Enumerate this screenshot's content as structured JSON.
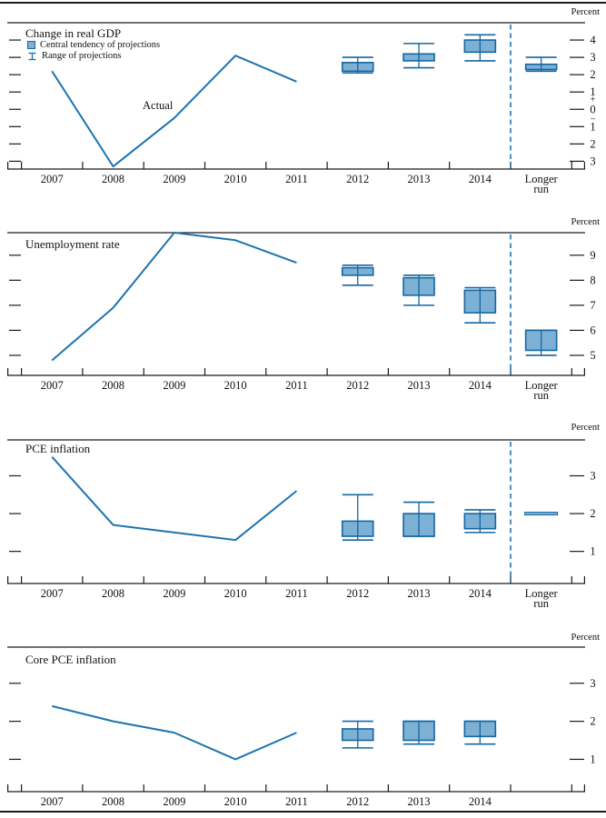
{
  "labels": {
    "percent": "Percent",
    "actual": "Actual",
    "plus": "+",
    "minus": "_",
    "longer_run": [
      "Longer",
      "run"
    ]
  },
  "legend": {
    "items": [
      {
        "icon": "central-tendency-swatch",
        "label": "Central tendency of projections"
      },
      {
        "icon": "range-whisker-icon",
        "label": "Range of projections"
      }
    ]
  },
  "colors": {
    "line": "#1d74af",
    "box_fill": "#7db0d5",
    "box_border": "#1467a0",
    "dashed_divider": "#1d74af",
    "axis": "#1a1a1a",
    "text": "#111111"
  },
  "chart_data": [
    {
      "type": "line+boxplot",
      "title": "Change in real GDP",
      "unit": "Percent",
      "ylim": [
        -3.45,
        5.0
      ],
      "yticks": [
        4,
        3,
        2,
        1,
        0,
        -1,
        -2,
        -3
      ],
      "ytick_labels": [
        "4",
        "3",
        "2",
        "1",
        "0",
        "1",
        "2",
        "3"
      ],
      "zero_sign_marks": true,
      "x_years": [
        "2007",
        "2008",
        "2009",
        "2010",
        "2011"
      ],
      "actual_values": [
        2.2,
        -3.3,
        -0.5,
        3.1,
        1.6
      ],
      "show_actual_label": true,
      "has_longer_run": true,
      "x_axis_labels": [
        "2007",
        "2008",
        "2009",
        "2010",
        "2011",
        "2012",
        "2013",
        "2014"
      ],
      "projections": [
        {
          "period": "2012",
          "central_tendency": [
            2.2,
            2.7
          ],
          "range": [
            2.1,
            3.0
          ]
        },
        {
          "period": "2013",
          "central_tendency": [
            2.8,
            3.2
          ],
          "range": [
            2.4,
            3.8
          ]
        },
        {
          "period": "2014",
          "central_tendency": [
            3.3,
            4.0
          ],
          "range": [
            2.8,
            4.3
          ]
        },
        {
          "period": "Longer run",
          "central_tendency": [
            2.3,
            2.6
          ],
          "range": [
            2.2,
            3.0
          ]
        }
      ]
    },
    {
      "type": "line+boxplot",
      "title": "Unemployment rate",
      "unit": "Percent",
      "ylim": [
        4.2,
        9.9
      ],
      "yticks": [
        9,
        8,
        7,
        6,
        5
      ],
      "ytick_labels": [
        "9",
        "8",
        "7",
        "6",
        "5"
      ],
      "zero_sign_marks": false,
      "x_years": [
        "2007",
        "2008",
        "2009",
        "2010",
        "2011"
      ],
      "actual_values": [
        4.8,
        6.9,
        9.9,
        9.6,
        8.7
      ],
      "show_actual_label": false,
      "has_longer_run": true,
      "x_axis_labels": [
        "2007",
        "2008",
        "2009",
        "2010",
        "2011",
        "2012",
        "2013",
        "2014"
      ],
      "projections": [
        {
          "period": "2012",
          "central_tendency": [
            8.2,
            8.5
          ],
          "range": [
            7.8,
            8.6
          ]
        },
        {
          "period": "2013",
          "central_tendency": [
            7.4,
            8.1
          ],
          "range": [
            7.0,
            8.2
          ]
        },
        {
          "period": "2014",
          "central_tendency": [
            6.7,
            7.6
          ],
          "range": [
            6.3,
            7.7
          ]
        },
        {
          "period": "Longer run",
          "central_tendency": [
            5.2,
            6.0
          ],
          "range": [
            5.0,
            6.0
          ]
        }
      ]
    },
    {
      "type": "line+boxplot",
      "title": "PCE inflation",
      "unit": "Percent",
      "ylim": [
        0.15,
        3.95
      ],
      "yticks": [
        3,
        2,
        1
      ],
      "ytick_labels": [
        "3",
        "2",
        "1"
      ],
      "zero_sign_marks": false,
      "x_years": [
        "2007",
        "2008",
        "2009",
        "2010",
        "2011"
      ],
      "actual_values": [
        3.5,
        1.7,
        1.5,
        1.3,
        2.6
      ],
      "show_actual_label": false,
      "has_longer_run": true,
      "x_axis_labels": [
        "2007",
        "2008",
        "2009",
        "2010",
        "2011",
        "2012",
        "2013",
        "2014"
      ],
      "projections": [
        {
          "period": "2012",
          "central_tendency": [
            1.4,
            1.8
          ],
          "range": [
            1.3,
            2.5
          ]
        },
        {
          "period": "2013",
          "central_tendency": [
            1.4,
            2.0
          ],
          "range": [
            1.4,
            2.3
          ]
        },
        {
          "period": "2014",
          "central_tendency": [
            1.6,
            2.0
          ],
          "range": [
            1.5,
            2.1
          ]
        },
        {
          "period": "Longer run",
          "central_tendency": [
            2.0,
            2.0
          ],
          "range": [
            2.0,
            2.0
          ]
        }
      ]
    },
    {
      "type": "line+boxplot",
      "title": "Core PCE inflation",
      "unit": "Percent",
      "ylim": [
        0.15,
        3.95
      ],
      "yticks": [
        3,
        2,
        1
      ],
      "ytick_labels": [
        "3",
        "2",
        "1"
      ],
      "zero_sign_marks": false,
      "x_years": [
        "2007",
        "2008",
        "2009",
        "2010",
        "2011"
      ],
      "actual_values": [
        2.4,
        2.0,
        1.7,
        1.0,
        1.7
      ],
      "show_actual_label": false,
      "has_longer_run": false,
      "x_axis_labels": [
        "2007",
        "2008",
        "2009",
        "2010",
        "2011",
        "2012",
        "2013",
        "2014"
      ],
      "projections": [
        {
          "period": "2012",
          "central_tendency": [
            1.5,
            1.8
          ],
          "range": [
            1.3,
            2.0
          ]
        },
        {
          "period": "2013",
          "central_tendency": [
            1.5,
            2.0
          ],
          "range": [
            1.4,
            2.0
          ]
        },
        {
          "period": "2014",
          "central_tendency": [
            1.6,
            2.0
          ],
          "range": [
            1.4,
            2.0
          ]
        }
      ]
    }
  ]
}
